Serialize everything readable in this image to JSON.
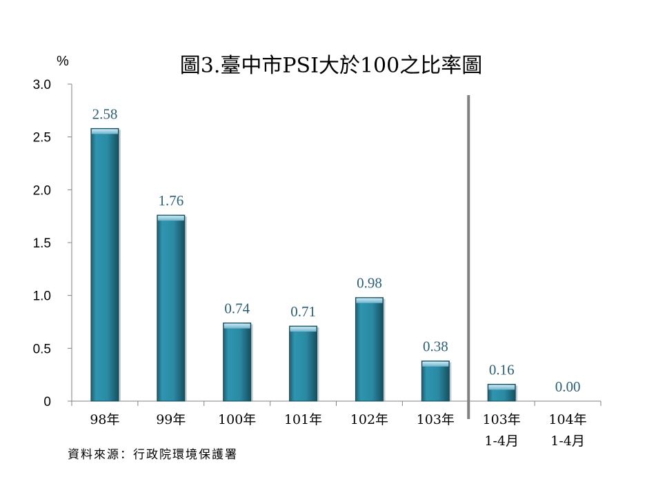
{
  "chart_data": {
    "type": "bar",
    "title": "圖3.臺中市PSI大於100之比率圖",
    "ylabel": "%",
    "ylim": [
      0,
      3.0
    ],
    "yticks": [
      "0",
      "0.5",
      "1.0",
      "1.5",
      "2.0",
      "2.5",
      "3.0"
    ],
    "categories": [
      [
        "98年"
      ],
      [
        "99年"
      ],
      [
        "100年"
      ],
      [
        "101年"
      ],
      [
        "102年"
      ],
      [
        "103年"
      ],
      [
        "103年",
        "1-4月"
      ],
      [
        "104年",
        "1-4月"
      ]
    ],
    "values": [
      2.58,
      1.76,
      0.74,
      0.71,
      0.98,
      0.38,
      0.16,
      0.0
    ],
    "value_labels": [
      "2.58",
      "1.76",
      "0.74",
      "0.71",
      "0.98",
      "0.38",
      "0.16",
      "0.00"
    ],
    "grid": false,
    "divider_after_category": 5,
    "colors": {
      "bar_fill": "#2a8aa3",
      "bar_dark": "#1a5566",
      "bar_cap": "#8ec8dc",
      "data_label": "#2c5f73",
      "divider": "#808080",
      "axis": "#808080"
    }
  },
  "source_note": "資料來源：行政院環境保護署"
}
